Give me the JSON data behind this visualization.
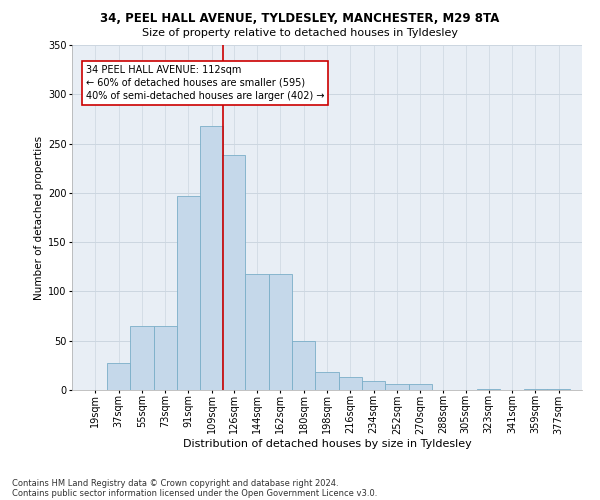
{
  "title1": "34, PEEL HALL AVENUE, TYLDESLEY, MANCHESTER, M29 8TA",
  "title2": "Size of property relative to detached houses in Tyldesley",
  "xlabel": "Distribution of detached houses by size in Tyldesley",
  "ylabel": "Number of detached properties",
  "footer1": "Contains HM Land Registry data © Crown copyright and database right 2024.",
  "footer2": "Contains public sector information licensed under the Open Government Licence v3.0.",
  "annotation_line1": "34 PEEL HALL AVENUE: 112sqm",
  "annotation_line2": "← 60% of detached houses are smaller (595)",
  "annotation_line3": "40% of semi-detached houses are larger (402) →",
  "categories": [
    "19sqm",
    "37sqm",
    "55sqm",
    "73sqm",
    "91sqm",
    "109sqm",
    "126sqm",
    "144sqm",
    "162sqm",
    "180sqm",
    "198sqm",
    "216sqm",
    "234sqm",
    "252sqm",
    "270sqm",
    "288sqm",
    "305sqm",
    "323sqm",
    "341sqm",
    "359sqm",
    "377sqm"
  ],
  "bin_centers": [
    19,
    37,
    55,
    73,
    91,
    109,
    126,
    144,
    162,
    180,
    198,
    216,
    234,
    252,
    270,
    288,
    305,
    323,
    341,
    359,
    377
  ],
  "bin_width": 18,
  "values": [
    0,
    27,
    65,
    65,
    197,
    268,
    238,
    118,
    118,
    50,
    18,
    13,
    9,
    6,
    6,
    0,
    0,
    1,
    0,
    1,
    1
  ],
  "bar_color": "#c5d8ea",
  "bar_edge_color": "#7aaec8",
  "vline_color": "#cc0000",
  "vline_x": 117.5,
  "grid_color": "#ccd6e0",
  "background_color": "#e8eef5",
  "ylim": [
    0,
    350
  ],
  "yticks": [
    0,
    50,
    100,
    150,
    200,
    250,
    300,
    350
  ],
  "title1_fontsize": 8.5,
  "title2_fontsize": 8.0,
  "xlabel_fontsize": 8.0,
  "ylabel_fontsize": 7.5,
  "tick_fontsize": 7.0,
  "annotation_fontsize": 7.0,
  "footer_fontsize": 6.0
}
